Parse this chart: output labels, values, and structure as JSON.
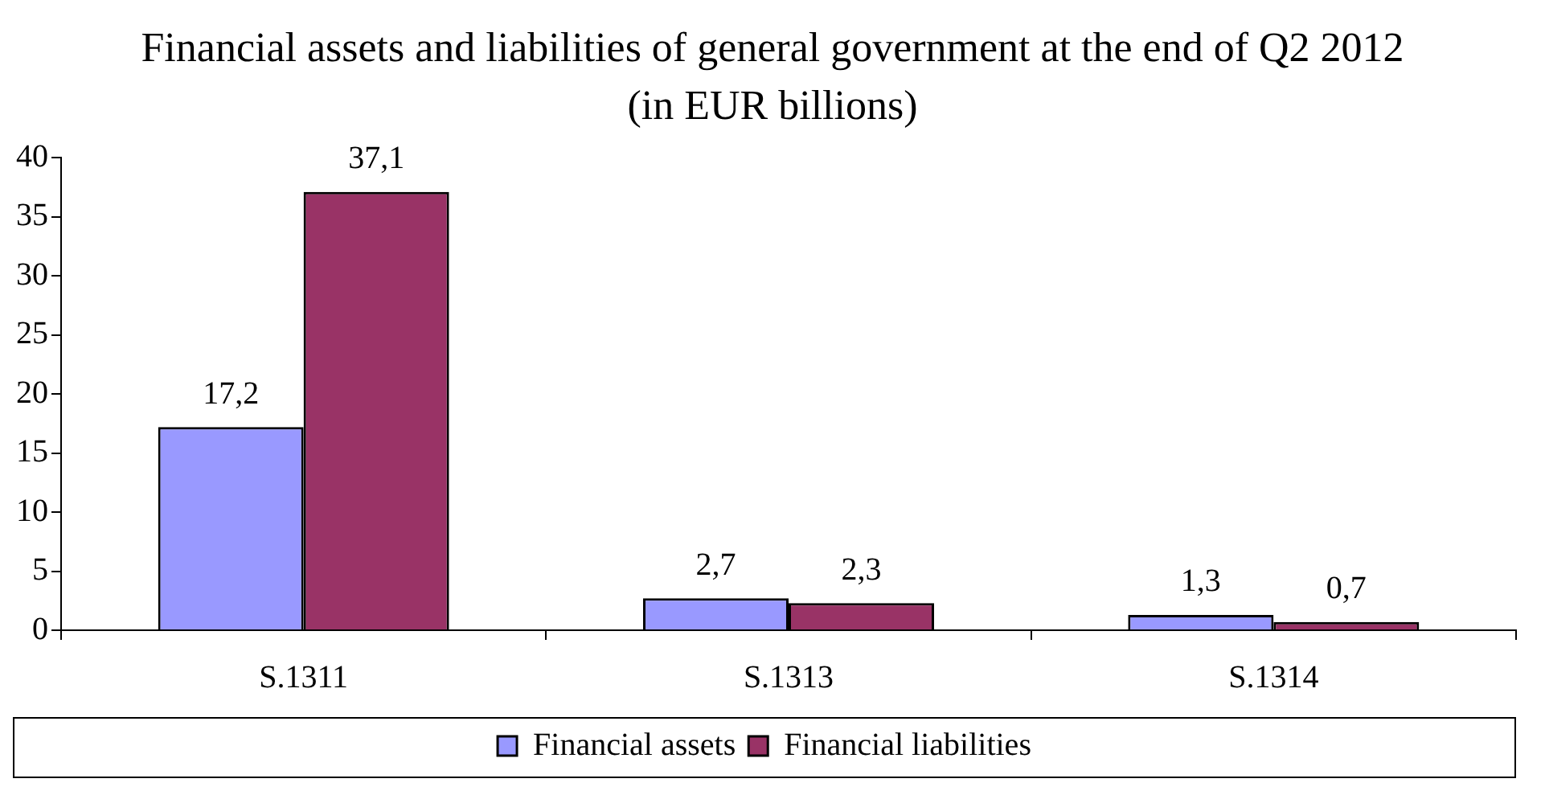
{
  "chart_data": {
    "type": "bar",
    "title": "Financial assets and liabilities of general government at the end of Q2 2012 (in EUR billions)",
    "categories": [
      "S.1311",
      "S.1313",
      "S.1314"
    ],
    "series": [
      {
        "name": "Financial assets",
        "color": "#9999ff",
        "values": [
          17.2,
          2.7,
          1.3
        ],
        "value_labels": [
          "17,2",
          "2,7",
          "1,3"
        ]
      },
      {
        "name": "Financial liabilities",
        "color": "#993366",
        "values": [
          37.1,
          2.3,
          0.7
        ],
        "value_labels": [
          "37,1",
          "2,3",
          "0,7"
        ]
      }
    ],
    "ylim": [
      0,
      40
    ],
    "yticks": [
      0,
      5,
      10,
      15,
      20,
      25,
      30,
      35,
      40
    ],
    "grid": false,
    "legend": "bottom"
  }
}
